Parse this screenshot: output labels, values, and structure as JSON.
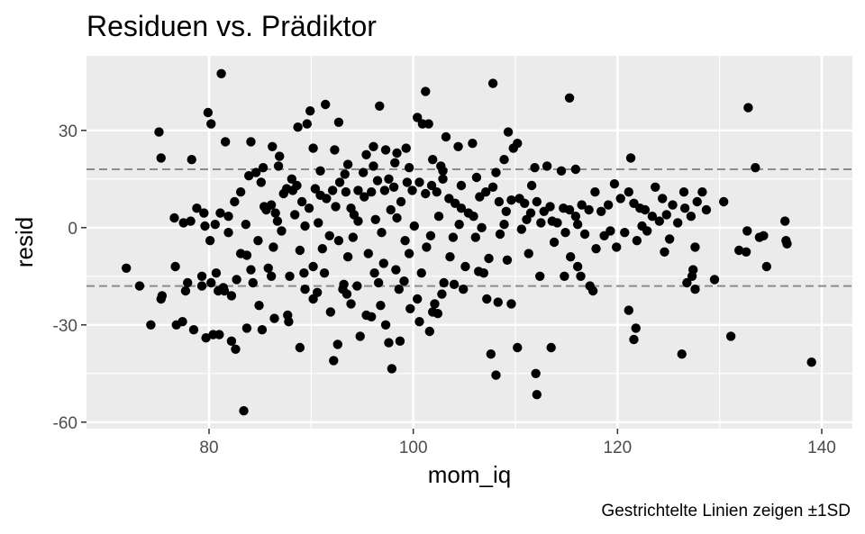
{
  "chart_data": {
    "type": "scatter",
    "title": "Residuen vs. Prädiktor",
    "xlabel": "mom_iq",
    "ylabel": "resid",
    "caption": "Gestrichtelte Linien zeigen ±1SD",
    "xlim": [
      68,
      143
    ],
    "ylim": [
      -62,
      53
    ],
    "x_ticks": [
      80,
      100,
      120,
      140
    ],
    "y_ticks": [
      -60,
      -30,
      0,
      30
    ],
    "x_tick_labels": [
      "80",
      "100",
      "120",
      "140"
    ],
    "y_tick_labels": [
      "-60",
      "-30",
      "0",
      "30"
    ],
    "sd_lines": [
      18,
      -18
    ],
    "grid": true,
    "colors": {
      "panel": "#ebebeb",
      "grid": "#ffffff",
      "points": "#000000",
      "sd_line": "#8c8c8c"
    },
    "points": [
      [
        81.2,
        47.5
      ],
      [
        107.8,
        44.5
      ],
      [
        101.2,
        42
      ],
      [
        115.3,
        40
      ],
      [
        132.8,
        37
      ],
      [
        79.9,
        35.5
      ],
      [
        80.2,
        32
      ],
      [
        75.1,
        29.5
      ],
      [
        81.6,
        26.5
      ],
      [
        75.3,
        21.5
      ],
      [
        78.3,
        21
      ],
      [
        84.1,
        26.5
      ],
      [
        86.2,
        25
      ],
      [
        86.9,
        22
      ],
      [
        88.7,
        31
      ],
      [
        89.6,
        32
      ],
      [
        89.9,
        36
      ],
      [
        91.4,
        38
      ],
      [
        90.2,
        24.5
      ],
      [
        92.3,
        24
      ],
      [
        92.7,
        32.5
      ],
      [
        93.6,
        19.5
      ],
      [
        96.7,
        37.5
      ],
      [
        95.4,
        22.5
      ],
      [
        96.1,
        25
      ],
      [
        97.3,
        24
      ],
      [
        98.4,
        23
      ],
      [
        99.3,
        24.5
      ],
      [
        100.4,
        34
      ],
      [
        100.9,
        32
      ],
      [
        101.5,
        32
      ],
      [
        103.2,
        28
      ],
      [
        104.4,
        25
      ],
      [
        102.7,
        19
      ],
      [
        105.8,
        26
      ],
      [
        108.9,
        21
      ],
      [
        109.3,
        29.5
      ],
      [
        109.8,
        24.5
      ],
      [
        110.2,
        26
      ],
      [
        113.1,
        19
      ],
      [
        114.5,
        17.5
      ],
      [
        111.6,
        13
      ],
      [
        115.9,
        18
      ],
      [
        121.3,
        21.5
      ],
      [
        123.7,
        12.5
      ],
      [
        124.4,
        9
      ],
      [
        126.5,
        11
      ],
      [
        128.3,
        11
      ],
      [
        130.4,
        8
      ],
      [
        133.5,
        18.5
      ],
      [
        136.4,
        2
      ],
      [
        136.5,
        -4
      ],
      [
        136.6,
        -5
      ],
      [
        134.3,
        -2.5
      ],
      [
        133.9,
        -3
      ],
      [
        132.7,
        -1
      ],
      [
        132.6,
        -7.5
      ],
      [
        131.9,
        -7
      ],
      [
        134.6,
        -12
      ],
      [
        129.5,
        -16
      ],
      [
        127.6,
        -19
      ],
      [
        127.4,
        -13
      ],
      [
        127.3,
        -15
      ],
      [
        126.8,
        -17
      ],
      [
        126.3,
        -39
      ],
      [
        131.1,
        -33.5
      ],
      [
        139,
        -41.5
      ],
      [
        121.1,
        -25.5
      ],
      [
        121.6,
        -34.5
      ],
      [
        121.8,
        -31
      ],
      [
        112,
        -45
      ],
      [
        112.1,
        -51.5
      ],
      [
        113.5,
        -37
      ],
      [
        110.2,
        -37
      ],
      [
        108.1,
        -45.5
      ],
      [
        107.6,
        -39
      ],
      [
        106.9,
        -14
      ],
      [
        106.4,
        -13.5
      ],
      [
        108.3,
        -23
      ],
      [
        109.6,
        -23.5
      ],
      [
        112.4,
        -15
      ],
      [
        114.8,
        -15
      ],
      [
        116.4,
        -15
      ],
      [
        117.3,
        -18
      ],
      [
        117.6,
        -19.5
      ],
      [
        116.1,
        -12
      ],
      [
        83.4,
        -56.5
      ],
      [
        82.6,
        -37.5
      ],
      [
        82.2,
        -35
      ],
      [
        85.2,
        -31.5
      ],
      [
        83.7,
        -31
      ],
      [
        81,
        -33
      ],
      [
        80.4,
        -33
      ],
      [
        79.7,
        -34
      ],
      [
        77.4,
        -29
      ],
      [
        78.5,
        -31.5
      ],
      [
        76.8,
        -30
      ],
      [
        74.3,
        -30
      ],
      [
        75.4,
        -21
      ],
      [
        75.3,
        -22
      ],
      [
        71.9,
        -12.5
      ],
      [
        73.2,
        -18
      ],
      [
        76.7,
        -12
      ],
      [
        77.7,
        -19.5
      ],
      [
        79.3,
        -15
      ],
      [
        80.2,
        -17
      ],
      [
        80.9,
        -19.5
      ],
      [
        81.5,
        -19.5
      ],
      [
        82.2,
        -21
      ],
      [
        83.1,
        -8
      ],
      [
        84.1,
        -13
      ],
      [
        83.7,
        -8.5
      ],
      [
        84.9,
        -24
      ],
      [
        85.8,
        -12.5
      ],
      [
        86.4,
        -28
      ],
      [
        87.7,
        -27
      ],
      [
        87.8,
        -29
      ],
      [
        88.9,
        -37
      ],
      [
        89.4,
        -19
      ],
      [
        90.2,
        -22
      ],
      [
        90.6,
        -20
      ],
      [
        91.3,
        -14
      ],
      [
        91.9,
        -26
      ],
      [
        92.2,
        -41
      ],
      [
        92.6,
        -36
      ],
      [
        93.1,
        -19
      ],
      [
        93.5,
        -20.5
      ],
      [
        93.9,
        -23.5
      ],
      [
        94.8,
        -33.5
      ],
      [
        95.4,
        -27
      ],
      [
        95.9,
        -27.5
      ],
      [
        96.8,
        -24
      ],
      [
        97.3,
        -30
      ],
      [
        97.9,
        -43.5
      ],
      [
        97.6,
        -35.5
      ],
      [
        98.7,
        -35
      ],
      [
        99.1,
        -16.5
      ],
      [
        99.7,
        -25
      ],
      [
        100.6,
        -29
      ],
      [
        101.6,
        -32
      ],
      [
        101.9,
        -26
      ],
      [
        102.4,
        -26.5
      ],
      [
        102.1,
        -23.5
      ],
      [
        103,
        -17
      ],
      [
        104,
        -17.5
      ],
      [
        76.6,
        3
      ],
      [
        77.5,
        1.5
      ],
      [
        78.2,
        2
      ],
      [
        78.8,
        6
      ],
      [
        79.5,
        4.5
      ],
      [
        80.1,
        -4
      ],
      [
        80.6,
        1
      ],
      [
        81.1,
        4.5
      ],
      [
        81.9,
        3.5
      ],
      [
        82.5,
        8
      ],
      [
        83.1,
        11
      ],
      [
        83.9,
        16
      ],
      [
        84.6,
        17
      ],
      [
        85.1,
        14
      ],
      [
        85.6,
        5.5
      ],
      [
        86.1,
        7
      ],
      [
        86.7,
        2
      ],
      [
        87.3,
        10.5
      ],
      [
        87.6,
        12
      ],
      [
        88.2,
        11.5
      ],
      [
        88.6,
        13
      ],
      [
        89.1,
        8
      ],
      [
        89.8,
        6
      ],
      [
        90.4,
        12
      ],
      [
        90.9,
        10
      ],
      [
        91.5,
        9
      ],
      [
        92.1,
        11.5
      ],
      [
        92.8,
        14
      ],
      [
        93.4,
        11
      ],
      [
        93.9,
        6
      ],
      [
        94.6,
        11.5
      ],
      [
        95.2,
        9.5
      ],
      [
        95.9,
        11
      ],
      [
        96.5,
        14.5
      ],
      [
        97.2,
        11.5
      ],
      [
        97.6,
        15
      ],
      [
        98.1,
        12.5
      ],
      [
        98.8,
        8
      ],
      [
        99.4,
        14
      ],
      [
        99.9,
        11.5
      ],
      [
        100.6,
        14
      ],
      [
        101.2,
        10.5
      ],
      [
        101.8,
        13
      ],
      [
        102.3,
        11
      ],
      [
        102.9,
        15
      ],
      [
        103.5,
        9
      ],
      [
        104.1,
        7.5
      ],
      [
        104.7,
        6
      ],
      [
        105.4,
        4.5
      ],
      [
        105.9,
        3.5
      ],
      [
        106.5,
        9.5
      ],
      [
        107.1,
        11
      ],
      [
        107.8,
        12.5
      ],
      [
        108.4,
        8
      ],
      [
        109.1,
        5
      ],
      [
        109.6,
        8.5
      ],
      [
        110.4,
        9
      ],
      [
        110.9,
        7.5
      ],
      [
        111.5,
        4.5
      ],
      [
        112.1,
        8
      ],
      [
        112.8,
        5
      ],
      [
        113.4,
        6.5
      ],
      [
        114.1,
        1.5
      ],
      [
        114.7,
        6
      ],
      [
        115.3,
        5.5
      ],
      [
        115.9,
        3.5
      ],
      [
        116.5,
        7
      ],
      [
        117.2,
        5.5
      ],
      [
        117.8,
        11
      ],
      [
        118.4,
        5
      ],
      [
        119.1,
        7
      ],
      [
        119.7,
        13.5
      ],
      [
        120.3,
        9
      ],
      [
        121.1,
        11
      ],
      [
        121.6,
        7.5
      ],
      [
        122.2,
        6
      ],
      [
        122.7,
        5.5
      ],
      [
        123.4,
        3.5
      ],
      [
        124.1,
        2
      ],
      [
        124.8,
        4
      ],
      [
        125.4,
        7
      ],
      [
        125.9,
        1.5
      ],
      [
        126.6,
        6
      ],
      [
        127.2,
        3.5
      ],
      [
        127.8,
        8
      ],
      [
        128.7,
        5.5
      ],
      [
        85.4,
        6.5
      ],
      [
        86.5,
        4.5
      ],
      [
        88.4,
        4
      ],
      [
        90.7,
        1.5
      ],
      [
        92.4,
        6.5
      ],
      [
        94.2,
        4
      ],
      [
        96.3,
        2.5
      ],
      [
        98.4,
        3
      ],
      [
        100.1,
        0.5
      ],
      [
        102.5,
        3.5
      ],
      [
        104.5,
        1
      ],
      [
        106.1,
        -3
      ],
      [
        108.5,
        -2
      ],
      [
        110.6,
        -0.5
      ],
      [
        112.5,
        1.5
      ],
      [
        114.9,
        -1.5
      ],
      [
        116.8,
        -2
      ],
      [
        118.7,
        -2.5
      ],
      [
        120.7,
        -1.5
      ],
      [
        122.9,
        -1
      ],
      [
        84.8,
        -4
      ],
      [
        86.3,
        -6
      ],
      [
        88.9,
        -7
      ],
      [
        91.1,
        -6.5
      ],
      [
        93.6,
        -9
      ],
      [
        95.6,
        -8
      ],
      [
        97.1,
        -11
      ],
      [
        99.6,
        -8
      ],
      [
        101.3,
        -6
      ],
      [
        103.6,
        -9
      ],
      [
        105.1,
        -12
      ],
      [
        107.4,
        -9.5
      ],
      [
        109.2,
        -10
      ],
      [
        111.3,
        -8
      ],
      [
        113.8,
        -4.5
      ],
      [
        115.4,
        -9
      ],
      [
        117.9,
        -6.5
      ],
      [
        119.9,
        -6
      ],
      [
        121.9,
        -4
      ],
      [
        124.6,
        -7.5
      ],
      [
        79.6,
        0.5
      ],
      [
        81.9,
        -1.5
      ],
      [
        83.6,
        1
      ],
      [
        87.1,
        -1
      ],
      [
        89.4,
        0.5
      ],
      [
        91.8,
        -2.5
      ],
      [
        94.1,
        -3
      ],
      [
        96.9,
        -1.5
      ],
      [
        99.2,
        -4
      ],
      [
        101.7,
        -2.5
      ],
      [
        103.9,
        -3
      ],
      [
        106.7,
        0
      ],
      [
        108.9,
        1
      ],
      [
        111.1,
        2.5
      ],
      [
        113.6,
        2
      ],
      [
        116.1,
        1
      ],
      [
        119.3,
        -1
      ],
      [
        122.4,
        0.5
      ],
      [
        125.1,
        -3.5
      ],
      [
        127.6,
        -6
      ],
      [
        96.1,
        19
      ],
      [
        93.3,
        16.5
      ],
      [
        90.9,
        17.5
      ],
      [
        88.1,
        15
      ],
      [
        86.8,
        19
      ],
      [
        85.3,
        18.5
      ],
      [
        99.6,
        18.5
      ],
      [
        102.9,
        17.5
      ],
      [
        106.2,
        15.5
      ],
      [
        108.1,
        17
      ],
      [
        111.9,
        18.5
      ],
      [
        95.1,
        17
      ],
      [
        98.2,
        20
      ],
      [
        101.9,
        21
      ],
      [
        104.7,
        13
      ],
      [
        97.8,
        5.5
      ],
      [
        94.6,
        2
      ],
      [
        92.7,
        -4
      ],
      [
        90.2,
        -12
      ],
      [
        89.3,
        -14
      ],
      [
        87.9,
        -15
      ],
      [
        86.1,
        -15
      ],
      [
        84.3,
        -17
      ],
      [
        82.7,
        -16
      ],
      [
        81.4,
        -18.5
      ],
      [
        80.7,
        -14
      ],
      [
        79.3,
        -18
      ],
      [
        77.9,
        -17
      ],
      [
        96.6,
        -17
      ],
      [
        98.6,
        -19
      ],
      [
        100.4,
        -22
      ],
      [
        102.8,
        -20.5
      ],
      [
        104.9,
        -19
      ],
      [
        107.2,
        -22
      ],
      [
        100.8,
        -14
      ],
      [
        98.3,
        -13
      ],
      [
        96.2,
        -14
      ],
      [
        94.5,
        -18
      ],
      [
        93.2,
        -17.5
      ]
    ]
  }
}
